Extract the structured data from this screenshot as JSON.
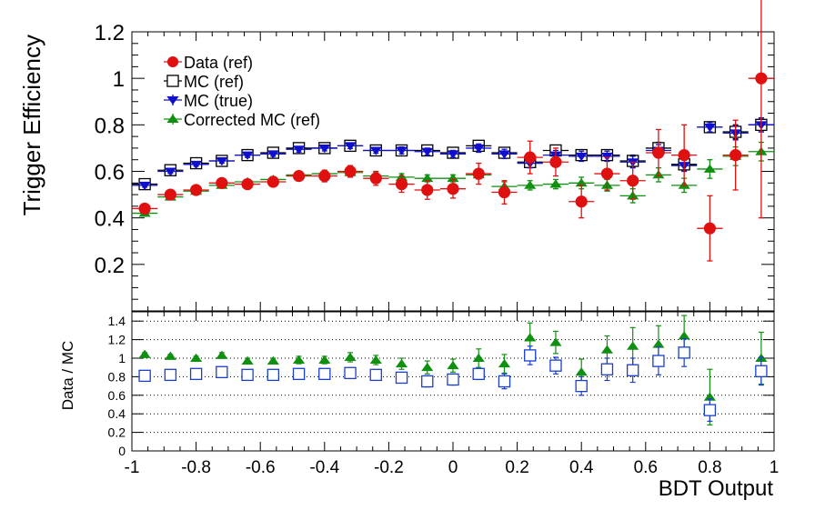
{
  "chart_data": [
    {
      "type": "scatter",
      "panel": "top",
      "ylabel": "Trigger Efficiency",
      "xlim": [
        -1,
        1
      ],
      "ylim": [
        0.0,
        1.2
      ],
      "yticks": [
        "0.2",
        "0.4",
        "0.6",
        "0.8",
        "1",
        "1.2"
      ],
      "legend_position": "top-left",
      "x_bin_halfwidth": 0.04,
      "x": [
        -0.96,
        -0.88,
        -0.8,
        -0.72,
        -0.64,
        -0.56,
        -0.48,
        -0.4,
        -0.32,
        -0.24,
        -0.16,
        -0.08,
        0.0,
        0.08,
        0.16,
        0.24,
        0.32,
        0.4,
        0.48,
        0.56,
        0.64,
        0.72,
        0.8,
        0.88,
        0.96
      ],
      "series": [
        {
          "name": "Data (ref)",
          "color": "#e01010",
          "marker": "circle",
          "values": [
            0.44,
            0.5,
            0.52,
            0.55,
            0.545,
            0.555,
            0.58,
            0.58,
            0.6,
            0.57,
            0.545,
            0.52,
            0.525,
            0.59,
            0.51,
            0.66,
            0.64,
            0.47,
            0.59,
            0.56,
            0.68,
            0.67,
            0.355,
            0.67,
            1.0
          ],
          "errors": [
            0.01,
            0.012,
            0.012,
            0.015,
            0.015,
            0.018,
            0.02,
            0.025,
            0.025,
            0.03,
            0.035,
            0.04,
            0.04,
            0.045,
            0.05,
            0.07,
            0.06,
            0.07,
            0.07,
            0.08,
            0.1,
            0.13,
            0.14,
            0.15,
            0.6
          ]
        },
        {
          "name": "MC (ref)",
          "color": "#000000",
          "marker": "open-square",
          "values": [
            0.545,
            0.605,
            0.635,
            0.645,
            0.67,
            0.68,
            0.7,
            0.7,
            0.71,
            0.69,
            0.69,
            0.69,
            0.68,
            0.71,
            0.68,
            0.64,
            0.69,
            0.67,
            0.67,
            0.645,
            0.7,
            0.63,
            0.79,
            0.77,
            0.8
          ],
          "errors": [
            0.008,
            0.008,
            0.008,
            0.01,
            0.01,
            0.01,
            0.012,
            0.012,
            0.012,
            0.012,
            0.015,
            0.015,
            0.015,
            0.018,
            0.02,
            0.02,
            0.02,
            0.022,
            0.022,
            0.025,
            0.025,
            0.025,
            0.02,
            0.03,
            0.03
          ]
        },
        {
          "name": "MC (true)",
          "color": "#1010cc",
          "marker": "down-triangle",
          "values": [
            0.54,
            0.6,
            0.63,
            0.645,
            0.67,
            0.675,
            0.695,
            0.7,
            0.71,
            0.69,
            0.69,
            0.685,
            0.675,
            0.7,
            0.675,
            0.635,
            0.67,
            0.665,
            0.665,
            0.64,
            0.69,
            0.625,
            0.79,
            0.765,
            0.8
          ],
          "errors": [
            0.008,
            0.008,
            0.008,
            0.01,
            0.01,
            0.01,
            0.012,
            0.012,
            0.012,
            0.012,
            0.015,
            0.015,
            0.015,
            0.018,
            0.02,
            0.02,
            0.02,
            0.022,
            0.022,
            0.025,
            0.025,
            0.025,
            0.02,
            0.03,
            0.03
          ]
        },
        {
          "name": "Corrected MC (ref)",
          "color": "#109010",
          "marker": "triangle",
          "values": [
            0.42,
            0.49,
            0.515,
            0.54,
            0.555,
            0.565,
            0.585,
            0.59,
            0.595,
            0.58,
            0.575,
            0.57,
            0.57,
            0.585,
            0.535,
            0.54,
            0.545,
            0.55,
            0.54,
            0.495,
            0.585,
            0.54,
            0.61,
            0.665,
            0.685
          ],
          "errors": [
            0.008,
            0.008,
            0.01,
            0.01,
            0.01,
            0.012,
            0.012,
            0.012,
            0.012,
            0.015,
            0.015,
            0.015,
            0.015,
            0.018,
            0.02,
            0.02,
            0.02,
            0.025,
            0.025,
            0.03,
            0.03,
            0.03,
            0.04,
            0.04,
            0.04
          ]
        }
      ]
    },
    {
      "type": "scatter",
      "panel": "bottom",
      "ylabel": "Data / MC",
      "xlabel": "BDT Output",
      "xlim": [
        -1,
        1
      ],
      "ylim": [
        0,
        1.5
      ],
      "xticks": [
        "-1",
        "-0.8",
        "-0.6",
        "-0.4",
        "-0.2",
        "0",
        "0.2",
        "0.4",
        "0.6",
        "0.8",
        "1"
      ],
      "yticks": [
        "0",
        "0.2",
        "0.4",
        "0.6",
        "0.8",
        "1",
        "1.2",
        "1.4"
      ],
      "grid": "horizontal dotted",
      "x": [
        -0.96,
        -0.88,
        -0.8,
        -0.72,
        -0.64,
        -0.56,
        -0.48,
        -0.4,
        -0.32,
        -0.24,
        -0.16,
        -0.08,
        0.0,
        0.08,
        0.16,
        0.24,
        0.32,
        0.4,
        0.48,
        0.56,
        0.64,
        0.72,
        0.8,
        0.88,
        0.96
      ],
      "series": [
        {
          "color": "#109010",
          "marker": "triangle",
          "values": [
            1.04,
            1.02,
            1.0,
            1.03,
            0.97,
            0.97,
            0.98,
            0.98,
            1.01,
            0.98,
            0.94,
            0.9,
            0.92,
            1.0,
            0.94,
            1.22,
            1.17,
            0.85,
            1.09,
            1.13,
            1.15,
            1.24,
            0.58,
            null,
            1.0
          ],
          "errors": [
            0.02,
            0.02,
            0.02,
            0.03,
            0.03,
            0.03,
            0.04,
            0.04,
            0.05,
            0.05,
            0.06,
            0.07,
            0.07,
            0.1,
            0.1,
            0.16,
            0.12,
            0.14,
            0.15,
            0.2,
            0.2,
            0.22,
            0.3,
            0.0,
            0.28
          ]
        },
        {
          "color": "#1a3fcc",
          "marker": "open-square",
          "values": [
            0.81,
            0.82,
            0.83,
            0.85,
            0.82,
            0.82,
            0.83,
            0.83,
            0.84,
            0.82,
            0.79,
            0.75,
            0.77,
            0.83,
            0.75,
            1.03,
            0.92,
            0.7,
            0.88,
            0.87,
            0.97,
            1.06,
            0.44,
            null,
            0.86
          ],
          "errors": [
            0.015,
            0.015,
            0.02,
            0.02,
            0.02,
            0.02,
            0.03,
            0.03,
            0.035,
            0.05,
            0.05,
            0.06,
            0.06,
            0.06,
            0.08,
            0.1,
            0.09,
            0.1,
            0.12,
            0.13,
            0.15,
            0.15,
            0.12,
            0.0,
            0.15
          ]
        }
      ]
    }
  ]
}
